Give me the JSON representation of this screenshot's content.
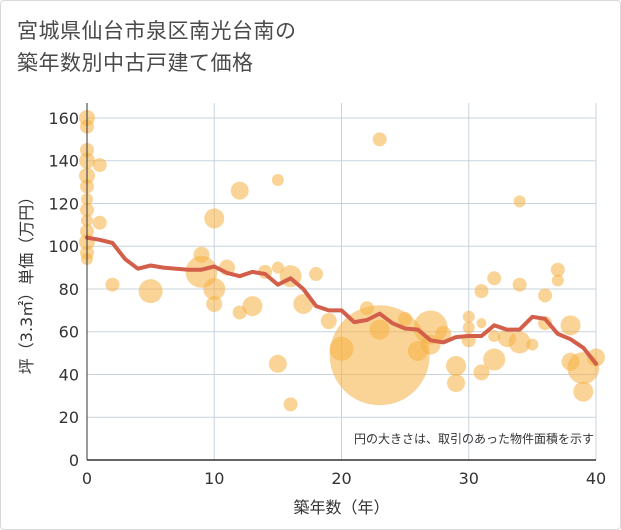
{
  "title_line1": "宮城県仙台市泉区南光台南の",
  "title_line2": "築年数別中古戸建て価格",
  "colors": {
    "bubble": "#f5b041",
    "line": "#d35f4a",
    "grid": "#c9d3de",
    "text": "#333333"
  },
  "chart_data": {
    "type": "scatter",
    "xlabel": "築年数（年）",
    "ylabel": "坪（3.3㎡）単価（万円）",
    "xlim": [
      0,
      40
    ],
    "ylim": [
      0,
      167
    ],
    "xticks": [
      0,
      10,
      20,
      30,
      40
    ],
    "yticks": [
      0,
      20,
      40,
      60,
      80,
      100,
      120,
      140,
      160
    ],
    "note": "円の大きさは、取引のあった物件面積を示す",
    "grid": true,
    "bubbles": [
      {
        "x": 0,
        "y": 160,
        "r": 8
      },
      {
        "x": 0,
        "y": 156,
        "r": 7
      },
      {
        "x": 0,
        "y": 145,
        "r": 7
      },
      {
        "x": 0,
        "y": 140,
        "r": 8
      },
      {
        "x": 0,
        "y": 133,
        "r": 8
      },
      {
        "x": 0,
        "y": 128,
        "r": 7
      },
      {
        "x": 0,
        "y": 122,
        "r": 6
      },
      {
        "x": 0,
        "y": 117,
        "r": 7
      },
      {
        "x": 0,
        "y": 112,
        "r": 6
      },
      {
        "x": 0,
        "y": 107,
        "r": 7
      },
      {
        "x": 0,
        "y": 102,
        "r": 8
      },
      {
        "x": 0,
        "y": 97,
        "r": 7
      },
      {
        "x": 0,
        "y": 94,
        "r": 6
      },
      {
        "x": 1,
        "y": 138,
        "r": 7
      },
      {
        "x": 1,
        "y": 111,
        "r": 7
      },
      {
        "x": 2,
        "y": 82,
        "r": 7
      },
      {
        "x": 5,
        "y": 79,
        "r": 12
      },
      {
        "x": 9,
        "y": 96,
        "r": 8
      },
      {
        "x": 9,
        "y": 88,
        "r": 16
      },
      {
        "x": 10,
        "y": 113,
        "r": 10
      },
      {
        "x": 10,
        "y": 80,
        "r": 11
      },
      {
        "x": 10,
        "y": 73,
        "r": 8
      },
      {
        "x": 11,
        "y": 90,
        "r": 8
      },
      {
        "x": 12,
        "y": 126,
        "r": 9
      },
      {
        "x": 12,
        "y": 69,
        "r": 7
      },
      {
        "x": 13,
        "y": 72,
        "r": 10
      },
      {
        "x": 14,
        "y": 88,
        "r": 7
      },
      {
        "x": 15,
        "y": 131,
        "r": 6
      },
      {
        "x": 15,
        "y": 90,
        "r": 6
      },
      {
        "x": 15,
        "y": 45,
        "r": 9
      },
      {
        "x": 16,
        "y": 86,
        "r": 11
      },
      {
        "x": 16,
        "y": 26,
        "r": 7
      },
      {
        "x": 17,
        "y": 73,
        "r": 10
      },
      {
        "x": 18,
        "y": 87,
        "r": 7
      },
      {
        "x": 19,
        "y": 65,
        "r": 8
      },
      {
        "x": 20,
        "y": 52,
        "r": 12
      },
      {
        "x": 22,
        "y": 71,
        "r": 7
      },
      {
        "x": 23,
        "y": 150,
        "r": 7
      },
      {
        "x": 23,
        "y": 61,
        "r": 10
      },
      {
        "x": 23,
        "y": 49,
        "r": 50
      },
      {
        "x": 25,
        "y": 66,
        "r": 7
      },
      {
        "x": 26,
        "y": 51,
        "r": 10
      },
      {
        "x": 27,
        "y": 62,
        "r": 17
      },
      {
        "x": 27,
        "y": 54,
        "r": 10
      },
      {
        "x": 28,
        "y": 59,
        "r": 8
      },
      {
        "x": 29,
        "y": 44,
        "r": 10
      },
      {
        "x": 29,
        "y": 36,
        "r": 9
      },
      {
        "x": 30,
        "y": 67,
        "r": 6
      },
      {
        "x": 30,
        "y": 62,
        "r": 6
      },
      {
        "x": 30,
        "y": 56,
        "r": 7
      },
      {
        "x": 31,
        "y": 79,
        "r": 7
      },
      {
        "x": 31,
        "y": 64,
        "r": 5
      },
      {
        "x": 31,
        "y": 41,
        "r": 8
      },
      {
        "x": 32,
        "y": 85,
        "r": 7
      },
      {
        "x": 32,
        "y": 58,
        "r": 6
      },
      {
        "x": 32,
        "y": 47,
        "r": 11
      },
      {
        "x": 33,
        "y": 57,
        "r": 9
      },
      {
        "x": 34,
        "y": 121,
        "r": 6
      },
      {
        "x": 34,
        "y": 82,
        "r": 7
      },
      {
        "x": 34,
        "y": 55,
        "r": 11
      },
      {
        "x": 35,
        "y": 54,
        "r": 6
      },
      {
        "x": 36,
        "y": 77,
        "r": 7
      },
      {
        "x": 36,
        "y": 64,
        "r": 7
      },
      {
        "x": 37,
        "y": 89,
        "r": 7
      },
      {
        "x": 37,
        "y": 84,
        "r": 6
      },
      {
        "x": 38,
        "y": 63,
        "r": 10
      },
      {
        "x": 38,
        "y": 46,
        "r": 9
      },
      {
        "x": 39,
        "y": 43,
        "r": 16
      },
      {
        "x": 39,
        "y": 32,
        "r": 10
      },
      {
        "x": 40,
        "y": 48,
        "r": 9
      }
    ],
    "trend": [
      {
        "x": 0,
        "y": 104
      },
      {
        "x": 1,
        "y": 103
      },
      {
        "x": 2,
        "y": 101.5
      },
      {
        "x": 3,
        "y": 94
      },
      {
        "x": 4,
        "y": 89.5
      },
      {
        "x": 5,
        "y": 91
      },
      {
        "x": 6,
        "y": 90
      },
      {
        "x": 7,
        "y": 89.5
      },
      {
        "x": 8,
        "y": 89
      },
      {
        "x": 9,
        "y": 89
      },
      {
        "x": 10,
        "y": 90.5
      },
      {
        "x": 11,
        "y": 87.5
      },
      {
        "x": 12,
        "y": 86
      },
      {
        "x": 13,
        "y": 88
      },
      {
        "x": 14,
        "y": 87
      },
      {
        "x": 15,
        "y": 82
      },
      {
        "x": 16,
        "y": 85
      },
      {
        "x": 17,
        "y": 80
      },
      {
        "x": 18,
        "y": 72
      },
      {
        "x": 19,
        "y": 70
      },
      {
        "x": 20,
        "y": 70
      },
      {
        "x": 21,
        "y": 64.5
      },
      {
        "x": 22,
        "y": 65.5
      },
      {
        "x": 23,
        "y": 68.5
      },
      {
        "x": 24,
        "y": 64
      },
      {
        "x": 25,
        "y": 61.5
      },
      {
        "x": 26,
        "y": 61
      },
      {
        "x": 27,
        "y": 56
      },
      {
        "x": 28,
        "y": 55
      },
      {
        "x": 29,
        "y": 57.5
      },
      {
        "x": 30,
        "y": 58
      },
      {
        "x": 31,
        "y": 58
      },
      {
        "x": 32,
        "y": 63
      },
      {
        "x": 33,
        "y": 61
      },
      {
        "x": 34,
        "y": 61
      },
      {
        "x": 35,
        "y": 67
      },
      {
        "x": 36,
        "y": 66
      },
      {
        "x": 37,
        "y": 59
      },
      {
        "x": 38,
        "y": 56.5
      },
      {
        "x": 39,
        "y": 52.5
      },
      {
        "x": 40,
        "y": 45
      }
    ]
  }
}
